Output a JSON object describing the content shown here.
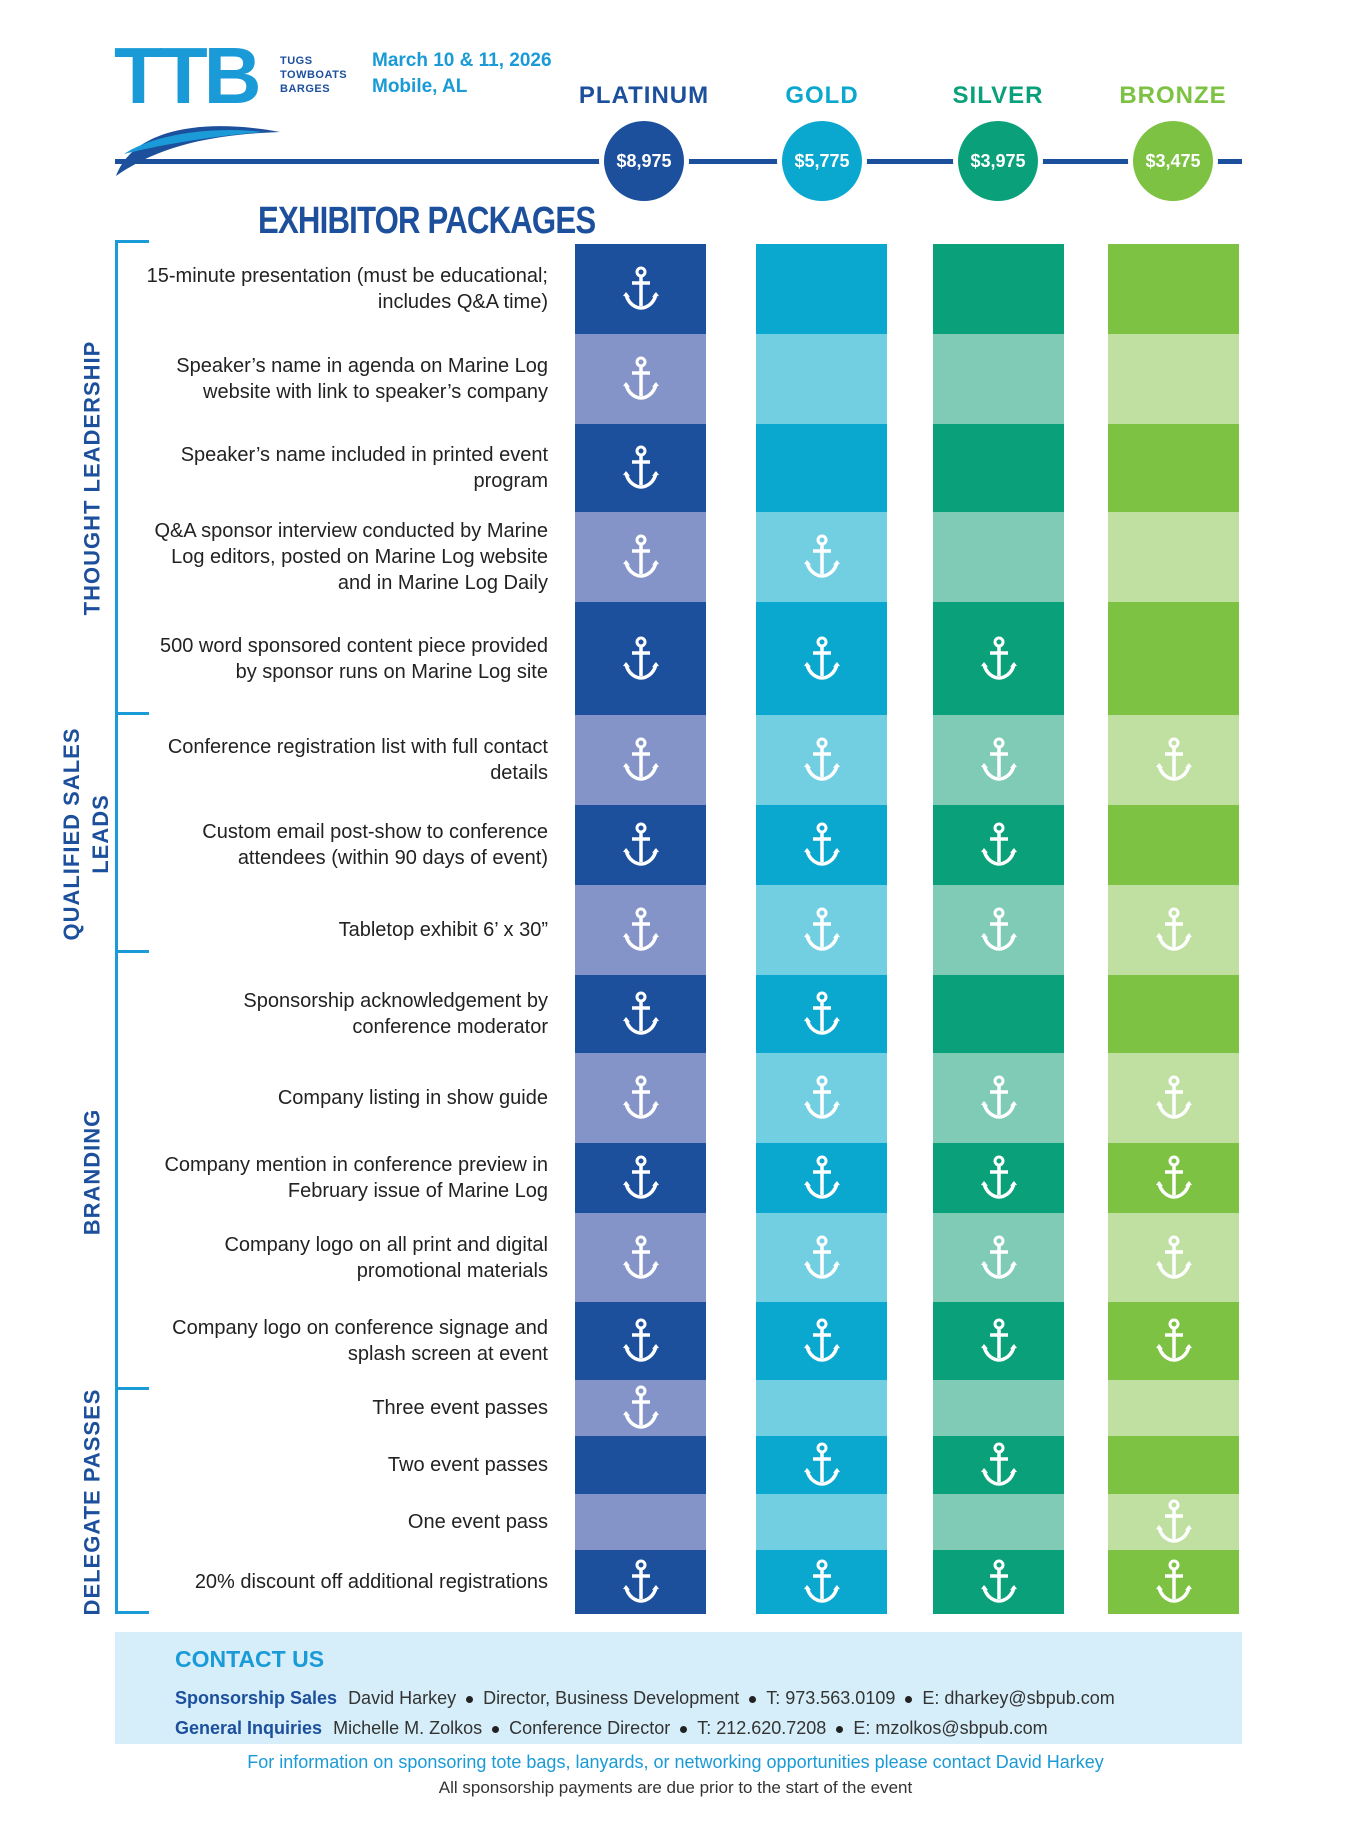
{
  "logo": {
    "letters": "TTB",
    "subtitle": [
      "TUGS",
      "TOWBOATS",
      "BARGES"
    ]
  },
  "event": {
    "date": "March 10 & 11, 2026",
    "location": "Mobile, AL"
  },
  "tiers": [
    {
      "name": "PLATINUM",
      "price": "$8,975",
      "color": "#1c4f9c",
      "dark": "#1c4f9c",
      "light": "#8494c8",
      "head_color": "#1c4f9c"
    },
    {
      "name": "GOLD",
      "price": "$5,775",
      "color": "#0aa8cf",
      "dark": "#0aa8cf",
      "light": "#72cfe2",
      "head_color": "#0aa8cf"
    },
    {
      "name": "SILVER",
      "price": "$3,975",
      "color": "#0aa07a",
      "dark": "#0aa07a",
      "light": "#80cbb6",
      "head_color": "#0aa07a"
    },
    {
      "name": "BRONZE",
      "price": "$3,475",
      "color": "#7dc242",
      "dark": "#7dc242",
      "light": "#c0e0a2",
      "head_color": "#7dc242"
    }
  ],
  "title": "EXHIBITOR PACKAGES",
  "categories": [
    {
      "label": "THOUGHT LEADERSHIP"
    },
    {
      "label": "QUALIFIED SALES LEADS"
    },
    {
      "label": "BRANDING"
    },
    {
      "label": "DELEGATE PASSES"
    }
  ],
  "features": [
    {
      "text": "15-minute presentation (must be educational; includes Q&A time)",
      "checks": [
        true,
        false,
        false,
        false
      ]
    },
    {
      "text": "Speaker’s name in agenda on Marine Log website with link to speaker’s company",
      "checks": [
        true,
        false,
        false,
        false
      ]
    },
    {
      "text": "Speaker’s name included in printed event program",
      "checks": [
        true,
        false,
        false,
        false
      ]
    },
    {
      "text": "Q&A sponsor interview conducted by Marine Log editors, posted on Marine Log website and in Marine Log Daily",
      "checks": [
        true,
        true,
        false,
        false
      ]
    },
    {
      "text": "500 word sponsored content piece provided by sponsor runs on Marine Log site",
      "checks": [
        true,
        true,
        true,
        false
      ]
    },
    {
      "text": "Conference registration list with full contact details",
      "checks": [
        true,
        true,
        true,
        true
      ]
    },
    {
      "text": "Custom email post-show to conference attendees (within 90 days of event)",
      "checks": [
        true,
        true,
        true,
        false
      ]
    },
    {
      "text": "Tabletop exhibit 6’ x 30”",
      "checks": [
        true,
        true,
        true,
        true
      ]
    },
    {
      "text": "Sponsorship acknowledgement by conference moderator",
      "checks": [
        true,
        true,
        false,
        false
      ]
    },
    {
      "text": "Company listing in show guide",
      "checks": [
        true,
        true,
        true,
        true
      ]
    },
    {
      "text": "Company mention in conference preview in February issue of Marine Log",
      "checks": [
        true,
        true,
        true,
        true
      ]
    },
    {
      "text": "Company logo on all print and digital promotional materials",
      "checks": [
        true,
        true,
        true,
        true
      ]
    },
    {
      "text": "Company logo on conference signage and splash screen at event",
      "checks": [
        true,
        true,
        true,
        true
      ]
    },
    {
      "text": "Three event passes",
      "checks": [
        true,
        false,
        false,
        false
      ]
    },
    {
      "text": "Two event passes",
      "checks": [
        false,
        true,
        true,
        false
      ]
    },
    {
      "text": "One event pass",
      "checks": [
        false,
        false,
        false,
        true
      ]
    },
    {
      "text": "20% discount off additional registrations",
      "checks": [
        true,
        true,
        true,
        true
      ]
    }
  ],
  "contact": {
    "title": "CONTACT US",
    "sales": {
      "label": "Sponsorship Sales",
      "name": "David Harkey",
      "role": "Director, Business Development",
      "phone": "T: 973.563.0109",
      "email": "E: dharkey@sbpub.com"
    },
    "general": {
      "label": "General Inquiries",
      "name": "Michelle M. Zolkos",
      "role": "Conference Director",
      "phone": "T: 212.620.7208",
      "email": "E: mzolkos@sbpub.com"
    }
  },
  "footer": {
    "note": "For information on sponsoring tote bags, lanyards, or networking opportunities please contact David Harkey",
    "payment": "All sponsorship payments are due prior to the start of the event"
  },
  "icons": {
    "check": "anchor-icon"
  }
}
